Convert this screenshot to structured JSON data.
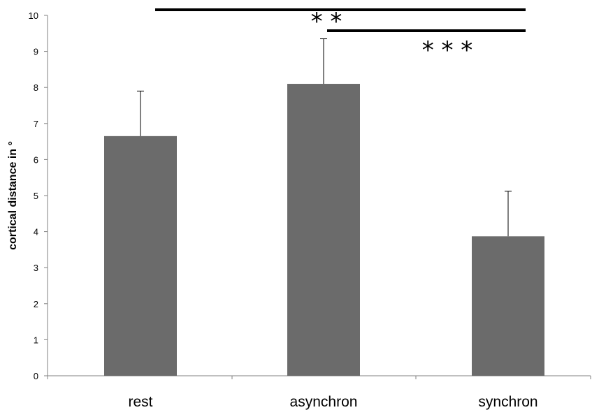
{
  "chart_data": {
    "type": "bar",
    "categories": [
      "rest",
      "asynchron",
      "synchron"
    ],
    "values": [
      6.65,
      8.1,
      3.87
    ],
    "error_upper": [
      7.9,
      9.35,
      5.12
    ],
    "ylabel": "cortical distance in °",
    "ylim": [
      0,
      10
    ],
    "yticks": [
      "0",
      "1",
      "2",
      "3",
      "4",
      "5",
      "6",
      "7",
      "8",
      "9",
      "10"
    ],
    "bar_color": "#6b6b6b",
    "significance": [
      {
        "from": "rest",
        "to": "synchron",
        "label": "* *"
      },
      {
        "from": "asynchron",
        "to": "synchron",
        "label": "* * *"
      }
    ]
  }
}
